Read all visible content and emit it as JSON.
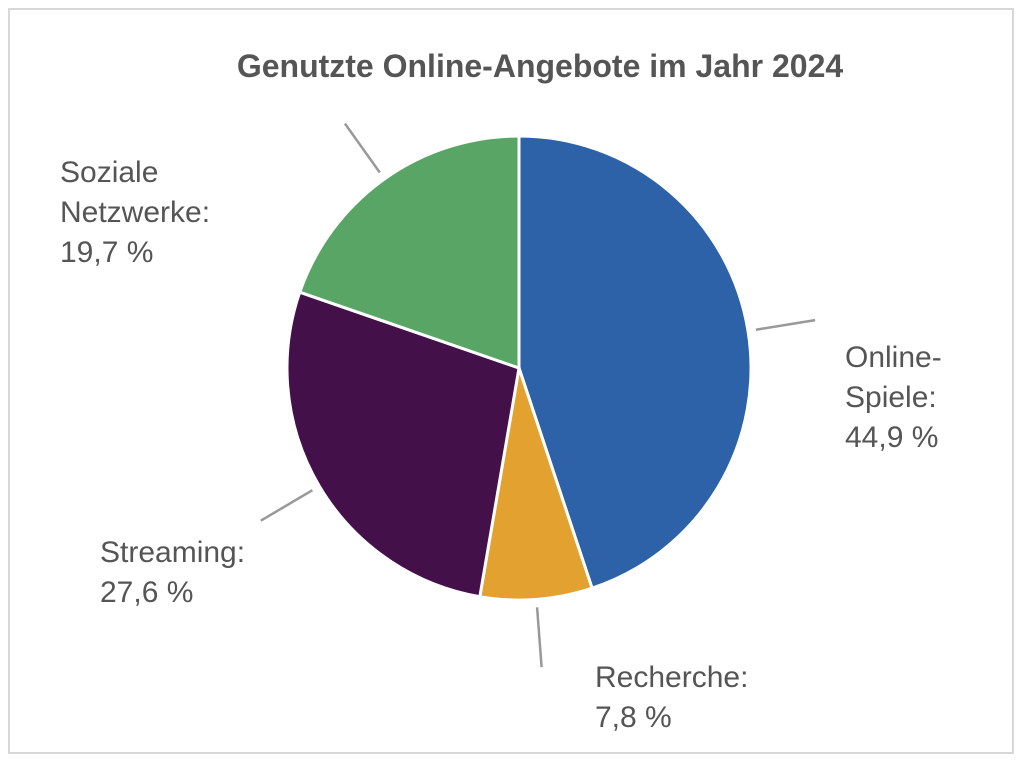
{
  "chart_data": {
    "type": "pie",
    "title": "Genutzte Online-Angebote im Jahr 2024",
    "categories": [
      "Online-Spiele:",
      "Recherche:",
      "Streaming:",
      "Soziale Netzwerke:"
    ],
    "values": [
      44.9,
      7.8,
      27.6,
      19.7
    ],
    "value_labels": [
      "44,9 %",
      "7,8 %",
      "27,6 %",
      "19,7 %"
    ],
    "colors": [
      "#2e62a8",
      "#e3a22f",
      "#43104a",
      "#58a566"
    ]
  }
}
